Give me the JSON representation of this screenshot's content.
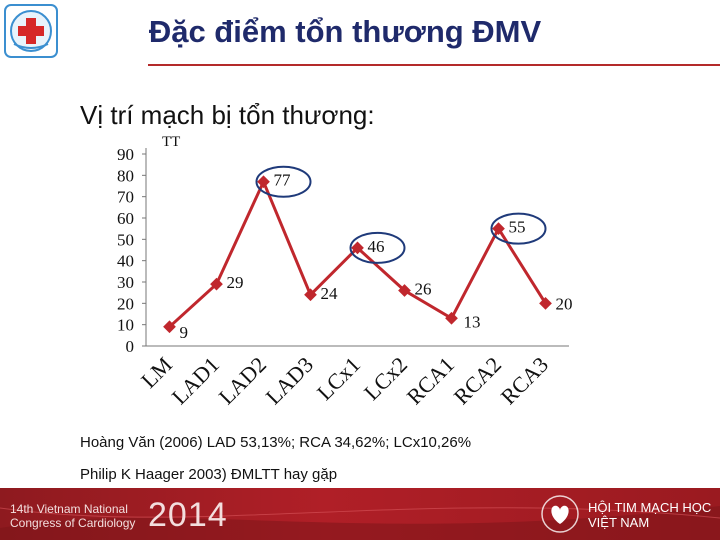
{
  "header": {
    "title": "Đặc điểm tổn thương ĐMV"
  },
  "subtitle": "Vị trí mạch bị tổn thương:",
  "chart_data": {
    "type": "line",
    "title": "",
    "ylabel_text": "TT",
    "categories": [
      "LM",
      "LAD1",
      "LAD2",
      "LAD3",
      "LCx1",
      "LCx2",
      "RCA1",
      "RCA2",
      "RCA3"
    ],
    "series": [
      {
        "values": [
          9,
          29,
          77,
          24,
          46,
          26,
          13,
          55,
          20
        ]
      }
    ],
    "data_labels": [
      "9",
      "29",
      "77",
      "24",
      "46",
      "26",
      "13",
      "55",
      "20"
    ],
    "yticks": [
      "0",
      "10",
      "20",
      "30",
      "40",
      "50",
      "60",
      "70",
      "80",
      "90"
    ],
    "ylim": [
      0,
      90
    ],
    "grid": false,
    "legend": "none",
    "highlighted": [
      "LAD2",
      "LCx1",
      "RCA2"
    ],
    "line_color": "#c0272d",
    "marker_color": "#c0272d",
    "circle_color": "#1f3a7a"
  },
  "notes": [
    "Hoàng Văn (2006) LAD 53,13%; RCA 34,62%; LCx10,26%",
    "Philip K Haager 2003) ĐMLTT hay gặp"
  ],
  "footer": {
    "congress_line1": "14th Vietnam National",
    "congress_line2": "Congress of Cardiology",
    "year": "2014",
    "assoc_line1": "HỘI TIM MẠCH HỌC",
    "assoc_line2": "VIỆT NAM"
  },
  "colors": {
    "title": "#1f2a6b",
    "accent": "#b42a2a",
    "footer": "#a01d24"
  }
}
